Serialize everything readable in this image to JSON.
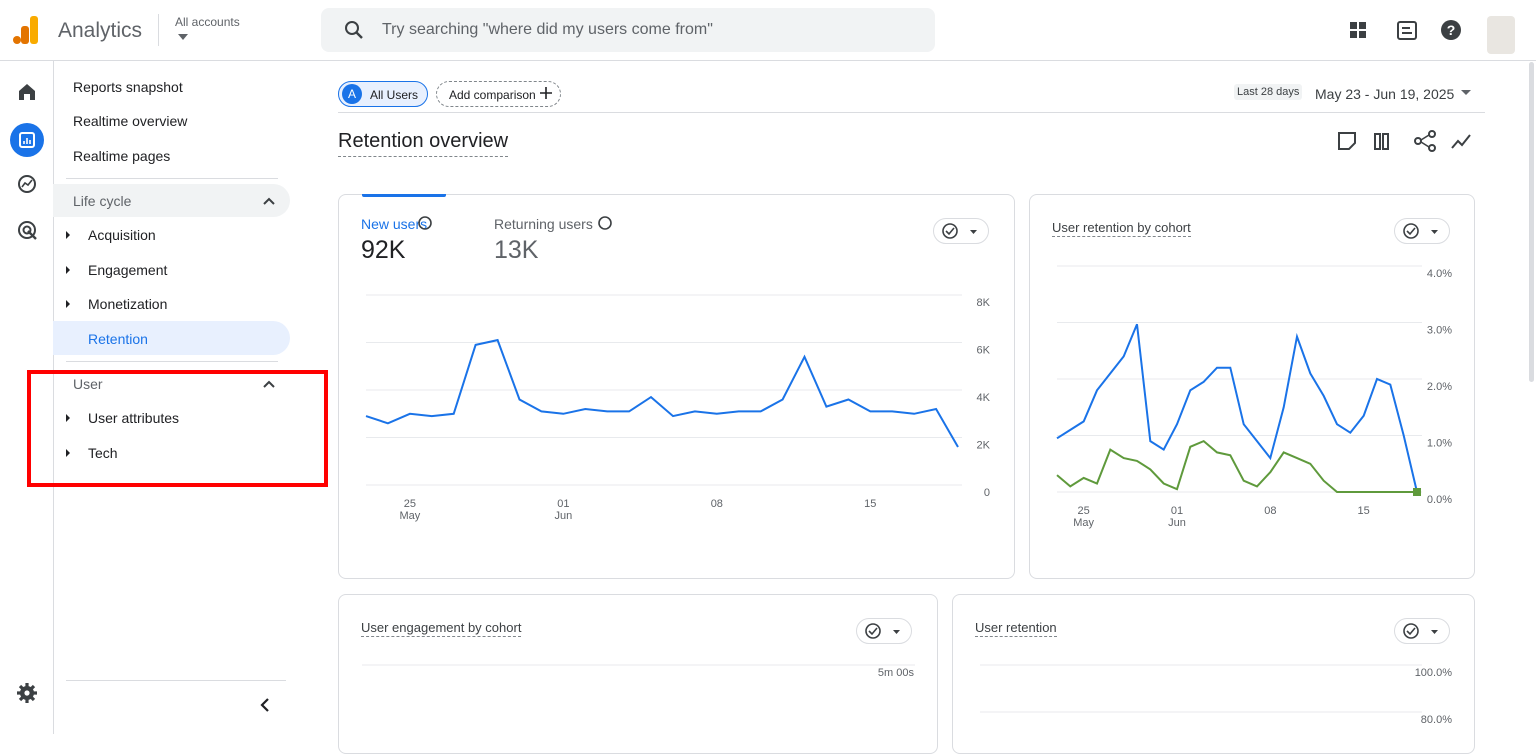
{
  "header": {
    "app": "Analytics",
    "account": "All accounts",
    "search": "Try searching \"where did my users come from\""
  },
  "nav": {
    "items": [
      "Reports snapshot",
      "Realtime overview",
      "Realtime pages"
    ],
    "sections": [
      {
        "title": "Life cycle",
        "items": [
          "Acquisition",
          "Engagement",
          "Monetization",
          "Retention"
        ]
      },
      {
        "title": "User",
        "items": [
          "User attributes",
          "Tech"
        ]
      }
    ]
  },
  "toolbar": {
    "segment_badge": "A",
    "segment": "All Users",
    "comparison": "Add comparison",
    "range_label": "Last 28 days",
    "range": "May 23 - Jun 19, 2025"
  },
  "page_title": "Retention overview",
  "cards": [
    {
      "metrics": [
        {
          "name": "New users",
          "value": "92K"
        },
        {
          "name": "Returning users",
          "value": "13K"
        }
      ],
      "chart": {
        "type": "line",
        "categories": [
          null,
          null,
          "25",
          null,
          null,
          null,
          null,
          null,
          null,
          "01",
          null,
          null,
          null,
          null,
          null,
          null,
          "08",
          null,
          null,
          null,
          null,
          null,
          null,
          "15",
          null,
          null,
          null,
          null
        ],
        "category_sublabels": [
          null,
          null,
          "May",
          null,
          null,
          null,
          null,
          null,
          null,
          "Jun",
          null,
          null,
          null,
          null,
          null,
          null,
          null,
          null,
          null,
          null,
          null,
          null,
          null,
          null,
          null,
          null,
          null,
          null
        ],
        "series": [
          {
            "name": "New users",
            "color": "#1a73e8",
            "values": [
              2900,
              2600,
              3000,
              2900,
              3000,
              5900,
              6100,
              3600,
              3100,
              3000,
              3200,
              3100,
              3100,
              3700,
              2900,
              3100,
              3000,
              3100,
              3100,
              3600,
              5400,
              3300,
              3600,
              3100,
              3100,
              3000,
              3200,
              1600
            ]
          }
        ],
        "ylim": [
          0,
          8000
        ],
        "yticks": [
          0,
          {
            "value": 2000,
            "label": "2K"
          },
          {
            "value": 4000,
            "label": "4K"
          },
          {
            "value": 6000,
            "label": "6K"
          },
          {
            "value": 8000,
            "label": "8K"
          }
        ],
        "grid": true
      }
    },
    {
      "title": "User retention by cohort",
      "chart": {
        "type": "line",
        "categories": [
          null,
          null,
          "25",
          null,
          null,
          null,
          null,
          null,
          null,
          "01",
          null,
          null,
          null,
          null,
          null,
          null,
          "08",
          null,
          null,
          null,
          null,
          null,
          null,
          "15",
          null,
          null,
          null,
          null
        ],
        "category_sublabels": [
          null,
          null,
          "May",
          null,
          null,
          null,
          null,
          null,
          null,
          "Jun",
          null,
          null,
          null,
          null,
          null,
          null,
          null,
          null,
          null,
          null,
          null,
          null,
          null,
          null,
          null,
          null,
          null,
          null
        ],
        "series": [
          {
            "color": "#1a73e8",
            "values": [
              0.95,
              1.1,
              1.25,
              1.8,
              2.1,
              2.4,
              2.97,
              0.9,
              0.75,
              1.2,
              1.8,
              1.95,
              2.2,
              2.2,
              1.2,
              0.9,
              0.6,
              1.5,
              2.75,
              2.1,
              1.7,
              1.2,
              1.05,
              1.35,
              2.0,
              1.9,
              1.0,
              0.0
            ]
          },
          {
            "color": "#5f9a3c",
            "values": [
              0.3,
              0.1,
              0.25,
              0.15,
              0.75,
              0.6,
              0.55,
              0.4,
              0.15,
              0.05,
              0.8,
              0.9,
              0.7,
              0.65,
              0.2,
              0.1,
              0.35,
              0.7,
              0.6,
              0.5,
              0.2,
              0.0,
              0.0,
              0.0,
              0.0,
              0.0,
              0.0,
              0.0
            ]
          }
        ],
        "ylim": [
          0,
          4
        ],
        "yticks": [
          {
            "value": 0,
            "label": "0.0%"
          },
          {
            "value": 1,
            "label": "1.0%"
          },
          {
            "value": 2,
            "label": "2.0%"
          },
          {
            "value": 3,
            "label": "3.0%"
          },
          {
            "value": 4,
            "label": "4.0%"
          }
        ],
        "grid": true
      }
    },
    {
      "title": "User engagement by cohort",
      "chart": {
        "type": "line",
        "ylim": [
          0,
          300
        ],
        "yticks": [
          {
            "value": 300,
            "label": "5m 00s"
          }
        ],
        "grid": true
      }
    },
    {
      "title": "User retention",
      "chart": {
        "type": "line",
        "ylim": [
          0,
          100
        ],
        "yticks": [
          {
            "value": 100,
            "label": "100.0%"
          },
          {
            "value": 80,
            "label": "80.0%"
          }
        ],
        "grid": true
      }
    }
  ]
}
